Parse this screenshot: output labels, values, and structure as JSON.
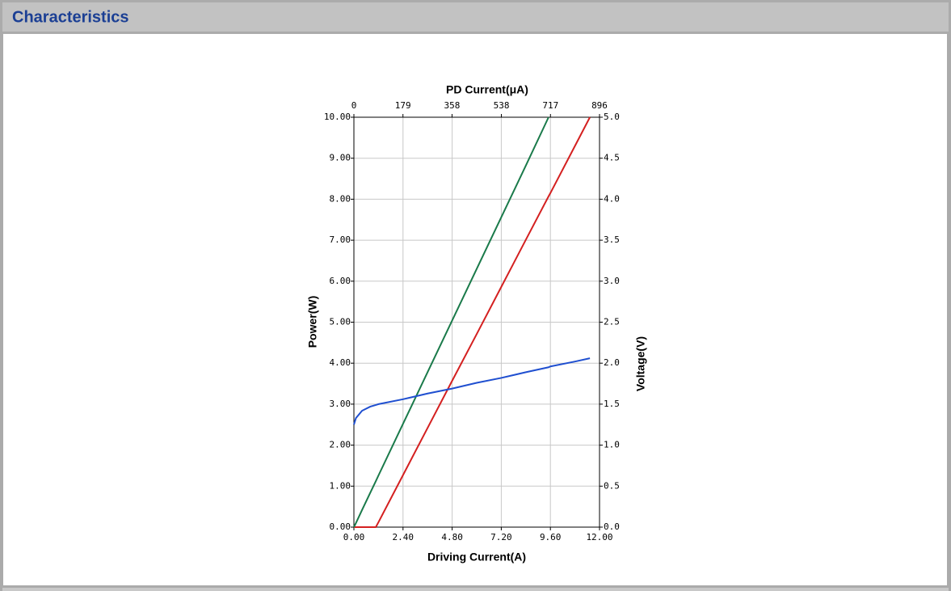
{
  "header": {
    "title": "Characteristics"
  },
  "chart_data": {
    "type": "line",
    "title": "PD Current(μA)",
    "xlabel": "Driving Current(A)",
    "ylabel": "Power(W)",
    "y2label": "Voltage(V)",
    "x": [
      0,
      0.1,
      0.4,
      0.8,
      1.07,
      1.2,
      2.4,
      3.6,
      4.8,
      6,
      7.2,
      8.4,
      9.51,
      9.6,
      10.8,
      11.53
    ],
    "series": [
      {
        "color": "#d42020",
        "values": [
          0,
          0,
          0,
          0,
          0,
          0.12,
          1.27,
          2.42,
          3.57,
          4.71,
          5.86,
          7.01,
          8.07,
          8.15,
          9.3,
          10
        ]
      },
      {
        "color": "#1a7a4a",
        "values": [
          0,
          0.1,
          0.42,
          0.84,
          1.12,
          1.26,
          2.52,
          3.78,
          5.04,
          6.3,
          7.56,
          8.82,
          10,
          null,
          null,
          null
        ]
      },
      {
        "color": "#1f4fd0",
        "axis": "y2",
        "values": [
          1.25,
          1.33,
          1.42,
          1.47,
          1.49,
          1.5,
          1.56,
          1.63,
          1.69,
          1.76,
          1.82,
          1.89,
          1.95,
          1.96,
          2.02,
          2.06
        ]
      }
    ],
    "xlim": [
      0,
      12
    ],
    "xticks": [
      {
        "value": 0,
        "label": "0.00"
      },
      {
        "value": 2.4,
        "label": "2.40"
      },
      {
        "value": 4.8,
        "label": "4.80"
      },
      {
        "value": 7.2,
        "label": "7.20"
      },
      {
        "value": 9.6,
        "label": "9.60"
      },
      {
        "value": 12,
        "label": "12.00"
      }
    ],
    "x2lim": [
      0,
      896
    ],
    "x2ticks": [
      0,
      179,
      358,
      538,
      717,
      896
    ],
    "ylim": [
      0,
      10
    ],
    "yticks": [
      {
        "value": 0,
        "label": "0.00"
      },
      {
        "value": 1,
        "label": "1.00"
      },
      {
        "value": 2,
        "label": "2.00"
      },
      {
        "value": 3,
        "label": "3.00"
      },
      {
        "value": 4,
        "label": "4.00"
      },
      {
        "value": 5,
        "label": "5.00"
      },
      {
        "value": 6,
        "label": "6.00"
      },
      {
        "value": 7,
        "label": "7.00"
      },
      {
        "value": 8,
        "label": "8.00"
      },
      {
        "value": 9,
        "label": "9.00"
      },
      {
        "value": 10,
        "label": "10.00"
      }
    ],
    "y2lim": [
      0,
      5
    ],
    "y2ticks": [
      {
        "value": 0,
        "label": "0.0"
      },
      0.5,
      {
        "value": 1,
        "label": "1.0"
      },
      1.5,
      {
        "value": 2,
        "label": "2.0"
      },
      2.5,
      {
        "value": 3,
        "label": "3.0"
      },
      3.5,
      {
        "value": 4,
        "label": "4.0"
      },
      4.5,
      {
        "value": 5,
        "label": "5.0"
      }
    ],
    "grid": true
  }
}
